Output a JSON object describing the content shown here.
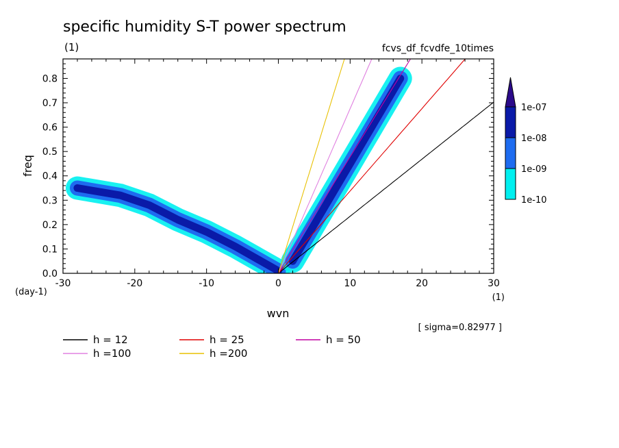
{
  "chart_data": {
    "type": "heatmap",
    "title": "specific humidity S-T power spectrum",
    "subtitle_left": "(1)",
    "subtitle_right": "fcvs_df_fcvdfe_10times",
    "xlabel": "wvn",
    "ylabel": "freq",
    "x_unit": "(1)",
    "y_unit": "(day-1)",
    "xlim": [
      -30,
      30
    ],
    "ylim": [
      0,
      0.88
    ],
    "x_ticks": [
      -30,
      -20,
      -10,
      0,
      10,
      20,
      30
    ],
    "x_tick_labels": [
      "-30",
      "-20",
      "-10",
      "0",
      "10",
      "20",
      "30"
    ],
    "y_ticks": [
      0.0,
      0.1,
      0.2,
      0.3,
      0.4,
      0.5,
      0.6,
      0.7,
      0.8
    ],
    "y_tick_labels": [
      "0.0",
      "0.1",
      "0.2",
      "0.3",
      "0.4",
      "0.5",
      "0.6",
      "0.7",
      "0.8"
    ],
    "sigma_text": "[ sigma=0.82977 ]",
    "colorbar": {
      "labels": [
        "1e-07",
        "1e-08",
        "1e-09",
        "1e-10"
      ],
      "colors": [
        "#2b0a8a",
        "#0a1aa8",
        "#1e6cf0",
        "#00f0f0"
      ]
    },
    "dispersion_curves": [
      {
        "label": "h = 12",
        "h": 12,
        "color": "#000000"
      },
      {
        "label": "h = 25",
        "h": 25,
        "color": "#e00000"
      },
      {
        "label": "h = 50",
        "h": 50,
        "color": "#c000a0"
      },
      {
        "label": "h =100",
        "h": 100,
        "color": "#e080e0"
      },
      {
        "label": "h =200",
        "h": 200,
        "color": "#e8c000"
      }
    ],
    "spectral_bands": [
      {
        "name": "westward-diagonal",
        "points": [
          [
            -28,
            0.35
          ],
          [
            -22,
            0.32
          ],
          [
            -18,
            0.28
          ],
          [
            -14,
            0.22
          ],
          [
            -10,
            0.17
          ],
          [
            -6,
            0.11
          ],
          [
            -3,
            0.06
          ],
          [
            0,
            0.01
          ]
        ],
        "level": "1e-08"
      },
      {
        "name": "eastward-diagonal",
        "points": [
          [
            2,
            0.05
          ],
          [
            5,
            0.2
          ],
          [
            7,
            0.3
          ],
          [
            9,
            0.4
          ],
          [
            11,
            0.5
          ],
          [
            13,
            0.6
          ],
          [
            15,
            0.7
          ],
          [
            17,
            0.8
          ]
        ],
        "level": "1e-08"
      }
    ]
  }
}
